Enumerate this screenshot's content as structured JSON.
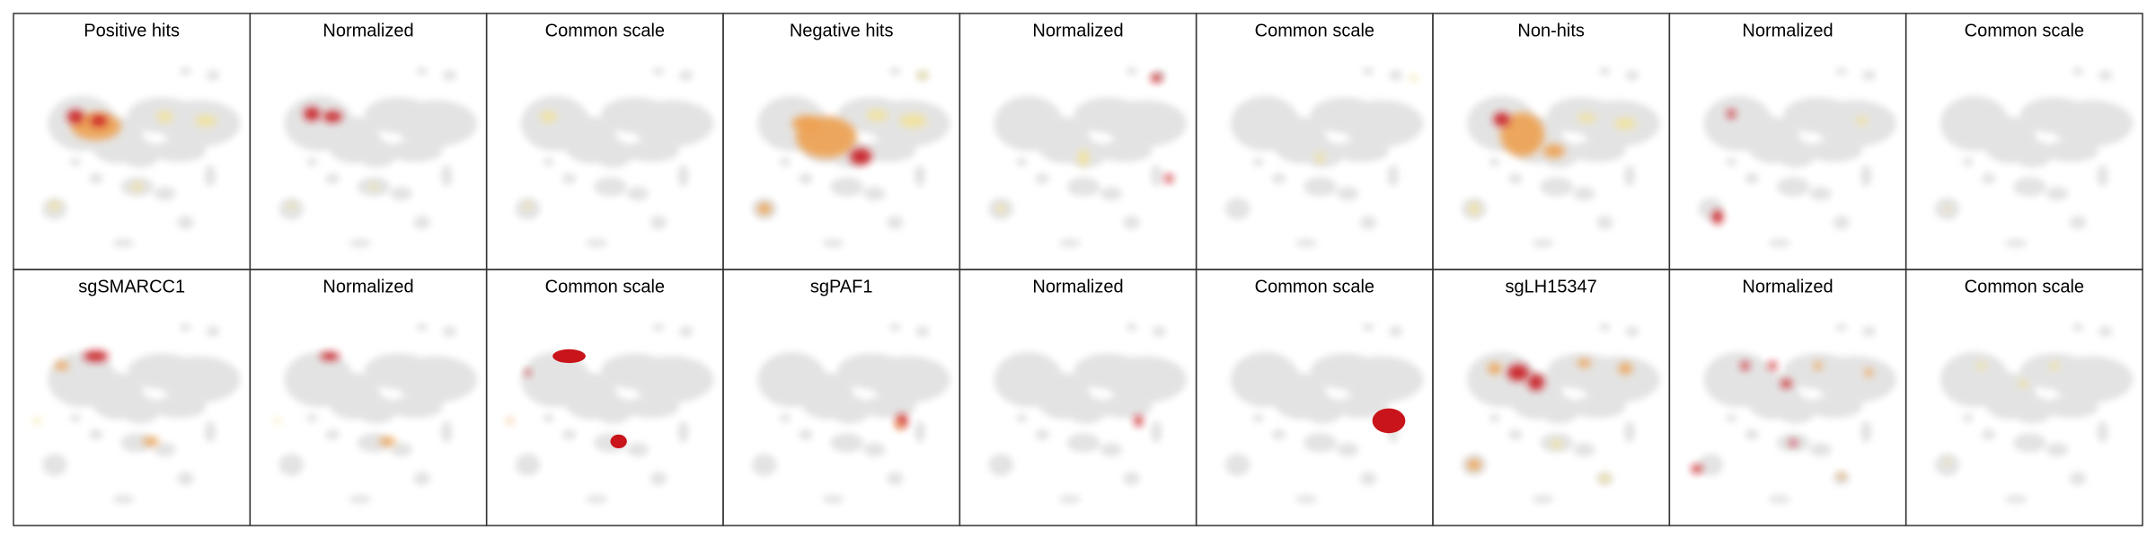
{
  "panels": {
    "rows": [
      [
        "Positive hits",
        "Normalized",
        "Common scale",
        "Negative hits",
        "Normalized",
        "Common scale",
        "Non-hits",
        "Normalized",
        "Common scale"
      ],
      [
        "sgSMARCC1",
        "Normalized",
        "Common scale",
        "sgPAF1",
        "Normalized",
        "Common scale",
        "sgLH15347",
        "Normalized",
        "Common scale"
      ]
    ]
  }
}
